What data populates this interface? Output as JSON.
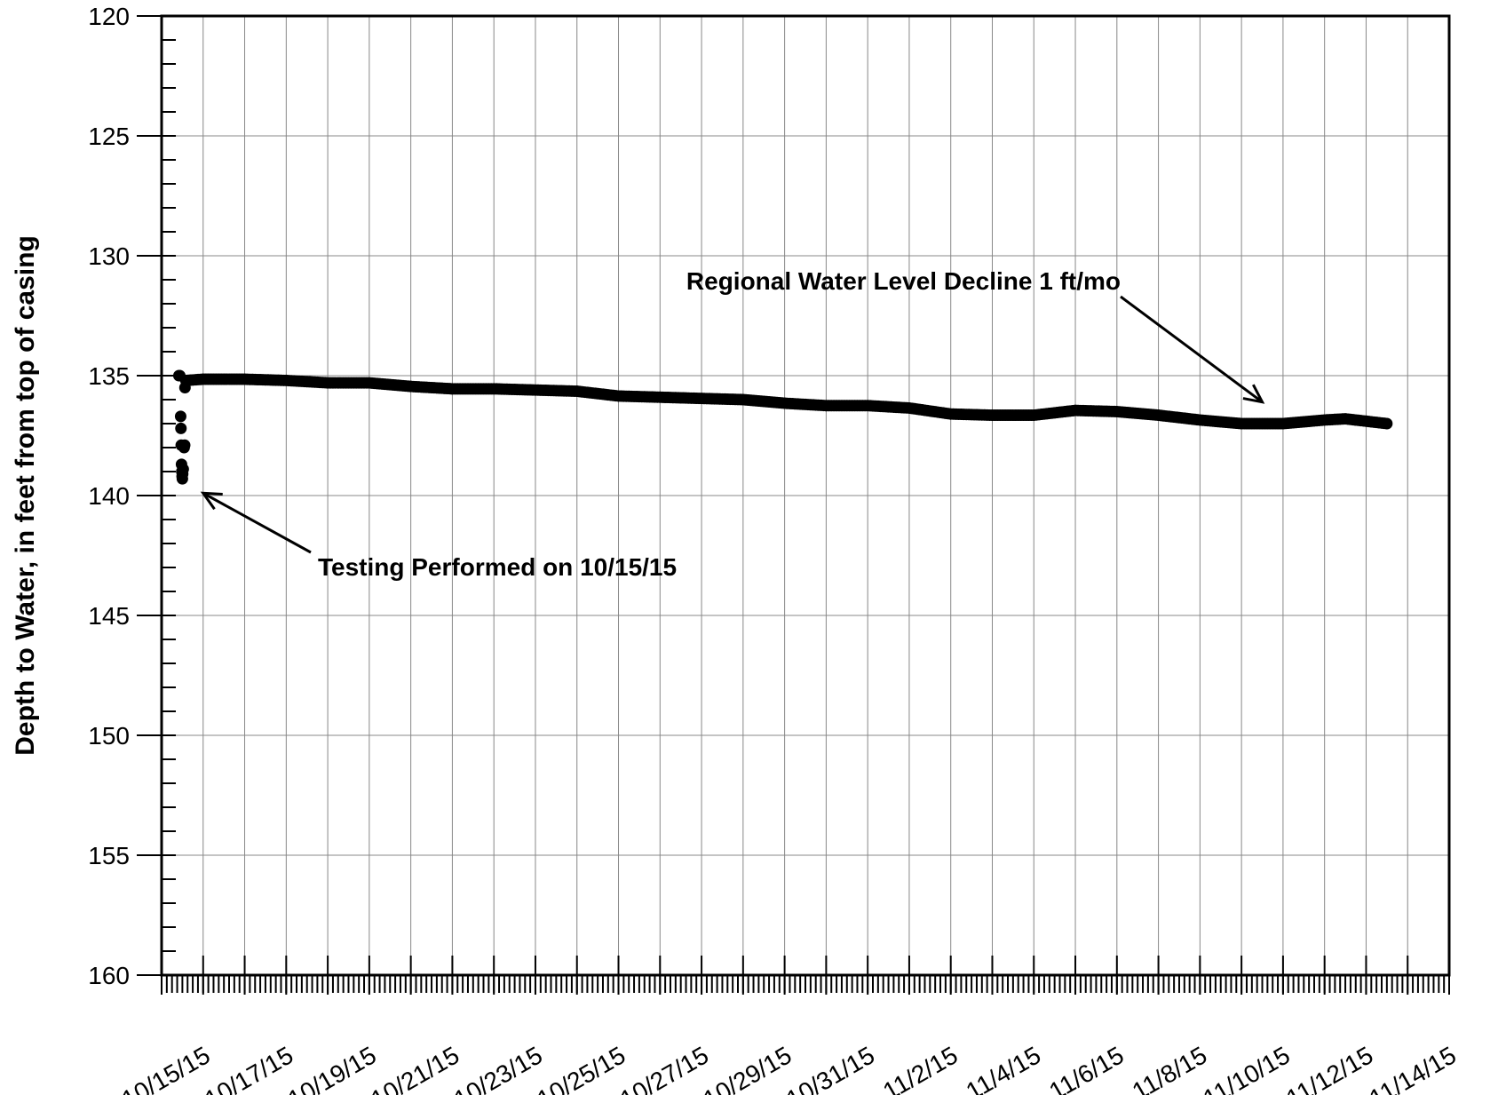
{
  "chart_data": {
    "type": "scatter",
    "title": "",
    "xlabel": "",
    "ylabel": "Depth to Water, in feet from top of casing",
    "y_axis_inverted": true,
    "ylim": [
      120,
      160
    ],
    "y_major_step": 5,
    "y_minor_step": 1,
    "xlim": [
      "2015-10-14",
      "2015-11-14"
    ],
    "x_tick_labels": [
      "10/15/15",
      "10/17/15",
      "10/19/15",
      "10/21/15",
      "10/23/15",
      "10/25/15",
      "10/27/15",
      "10/29/15",
      "10/31/15",
      "11/2/15",
      "11/4/15",
      "11/6/15",
      "11/8/15",
      "11/10/15",
      "11/12/15",
      "11/14/15"
    ],
    "y_tick_labels": [
      "120",
      "125",
      "130",
      "135",
      "140",
      "145",
      "150",
      "155",
      "160"
    ],
    "grid": true,
    "series": [
      {
        "marker_color": "#000000",
        "points": [
          [
            "2015-10-14 10:00",
            135.0
          ],
          [
            "2015-10-14 10:30",
            135.0
          ],
          [
            "2015-10-14 11:00",
            136.7
          ],
          [
            "2015-10-14 11:10",
            137.2
          ],
          [
            "2015-10-14 11:20",
            137.9
          ],
          [
            "2015-10-14 11:30",
            138.7
          ],
          [
            "2015-10-14 11:40",
            139.0
          ],
          [
            "2015-10-14 11:50",
            139.2
          ],
          [
            "2015-10-14 12:00",
            139.3
          ],
          [
            "2015-10-14 12:10",
            139.1
          ],
          [
            "2015-10-14 12:30",
            138.9
          ],
          [
            "2015-10-14 13:00",
            138.0
          ],
          [
            "2015-10-14 13:20",
            137.9
          ],
          [
            "2015-10-14 13:30",
            135.5
          ],
          [
            "2015-10-14 14:00",
            135.2
          ],
          [
            "2015-10-15 00:00",
            135.15
          ],
          [
            "2015-10-16 00:00",
            135.15
          ],
          [
            "2015-10-17 00:00",
            135.2
          ],
          [
            "2015-10-18 00:00",
            135.3
          ],
          [
            "2015-10-19 00:00",
            135.3
          ],
          [
            "2015-10-20 00:00",
            135.45
          ],
          [
            "2015-10-21 00:00",
            135.55
          ],
          [
            "2015-10-22 00:00",
            135.55
          ],
          [
            "2015-10-23 00:00",
            135.6
          ],
          [
            "2015-10-24 00:00",
            135.65
          ],
          [
            "2015-10-25 00:00",
            135.85
          ],
          [
            "2015-10-26 00:00",
            135.9
          ],
          [
            "2015-10-27 00:00",
            135.95
          ],
          [
            "2015-10-28 00:00",
            136.0
          ],
          [
            "2015-10-29 00:00",
            136.15
          ],
          [
            "2015-10-30 00:00",
            136.25
          ],
          [
            "2015-10-31 00:00",
            136.25
          ],
          [
            "2015-11-01 00:00",
            136.35
          ],
          [
            "2015-11-02 00:00",
            136.6
          ],
          [
            "2015-11-03 00:00",
            136.65
          ],
          [
            "2015-11-04 00:00",
            136.65
          ],
          [
            "2015-11-05 00:00",
            136.45
          ],
          [
            "2015-11-06 00:00",
            136.5
          ],
          [
            "2015-11-07 00:00",
            136.65
          ],
          [
            "2015-11-08 00:00",
            136.85
          ],
          [
            "2015-11-09 00:00",
            137.0
          ],
          [
            "2015-11-10 00:00",
            137.0
          ],
          [
            "2015-11-11 00:00",
            136.85
          ],
          [
            "2015-11-11 12:00",
            136.8
          ],
          [
            "2015-11-12 00:00",
            136.9
          ],
          [
            "2015-11-12 12:00",
            137.0
          ]
        ]
      }
    ],
    "annotations": [
      {
        "text": "Regional Water Level Decline 1 ft/mo",
        "points_to": [
          "2015-11-09 12:00",
          136.1
        ]
      },
      {
        "text": "Testing Performed on 10/15/15",
        "points_to": [
          "2015-10-15 00:00",
          139.9
        ]
      }
    ]
  }
}
